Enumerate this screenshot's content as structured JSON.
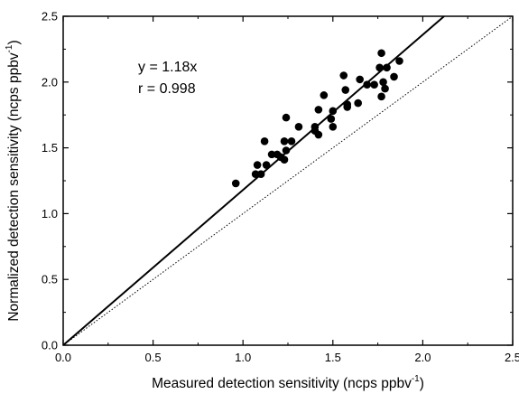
{
  "chart_data": {
    "type": "scatter",
    "title": "",
    "xlabel": "Measured detection sensitivity (ncps ppbv",
    "xlabel_sup": "-1",
    "xlabel_tail": ")",
    "ylabel": "Normalized detection sensitivity (ncps ppbv",
    "ylabel_sup": "-1",
    "ylabel_tail": ")",
    "xlim": [
      0.0,
      2.5
    ],
    "ylim": [
      0.0,
      2.5
    ],
    "x_ticks": [
      "0.0",
      "0.5",
      "1.0",
      "1.5",
      "2.0",
      "2.5"
    ],
    "y_ticks": [
      "0.0",
      "0.5",
      "1.0",
      "1.5",
      "2.0",
      "2.5"
    ],
    "grid": false,
    "annotations": {
      "equation": "y = 1.18x",
      "r_value": "r = 0.998"
    },
    "fit_line": {
      "slope": 1.18,
      "intercept": 0,
      "style": "solid"
    },
    "reference_line": {
      "slope": 1.0,
      "intercept": 0,
      "style": "dotted"
    },
    "points": [
      {
        "x": 0.96,
        "y": 1.23
      },
      {
        "x": 1.07,
        "y": 1.3
      },
      {
        "x": 1.08,
        "y": 1.37
      },
      {
        "x": 1.1,
        "y": 1.3
      },
      {
        "x": 1.12,
        "y": 1.55
      },
      {
        "x": 1.13,
        "y": 1.37
      },
      {
        "x": 1.16,
        "y": 1.45
      },
      {
        "x": 1.19,
        "y": 1.45
      },
      {
        "x": 1.21,
        "y": 1.43
      },
      {
        "x": 1.23,
        "y": 1.55
      },
      {
        "x": 1.23,
        "y": 1.41
      },
      {
        "x": 1.24,
        "y": 1.73
      },
      {
        "x": 1.24,
        "y": 1.48
      },
      {
        "x": 1.27,
        "y": 1.55
      },
      {
        "x": 1.31,
        "y": 1.66
      },
      {
        "x": 1.4,
        "y": 1.66
      },
      {
        "x": 1.4,
        "y": 1.63
      },
      {
        "x": 1.42,
        "y": 1.6
      },
      {
        "x": 1.42,
        "y": 1.79
      },
      {
        "x": 1.45,
        "y": 1.9
      },
      {
        "x": 1.49,
        "y": 1.72
      },
      {
        "x": 1.5,
        "y": 1.66
      },
      {
        "x": 1.5,
        "y": 1.78
      },
      {
        "x": 1.56,
        "y": 2.05
      },
      {
        "x": 1.57,
        "y": 1.94
      },
      {
        "x": 1.58,
        "y": 1.83
      },
      {
        "x": 1.58,
        "y": 1.81
      },
      {
        "x": 1.64,
        "y": 1.84
      },
      {
        "x": 1.65,
        "y": 2.02
      },
      {
        "x": 1.69,
        "y": 1.98
      },
      {
        "x": 1.73,
        "y": 1.98
      },
      {
        "x": 1.76,
        "y": 2.11
      },
      {
        "x": 1.77,
        "y": 2.22
      },
      {
        "x": 1.77,
        "y": 1.89
      },
      {
        "x": 1.78,
        "y": 2.0
      },
      {
        "x": 1.79,
        "y": 1.95
      },
      {
        "x": 1.8,
        "y": 2.11
      },
      {
        "x": 1.84,
        "y": 2.04
      },
      {
        "x": 1.87,
        "y": 2.16
      }
    ]
  }
}
